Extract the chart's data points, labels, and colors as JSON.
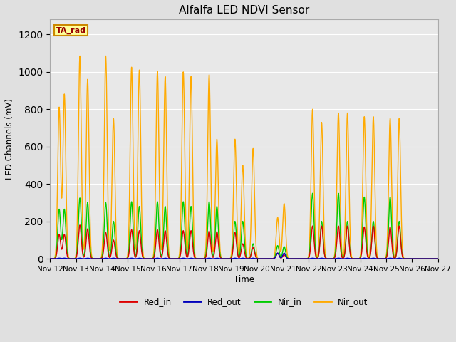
{
  "title": "Alfalfa LED NDVI Sensor",
  "ylabel": "LED Channels (mV)",
  "xlabel": "Time",
  "ylim": [
    0,
    1280
  ],
  "yticks": [
    0,
    200,
    400,
    600,
    800,
    1000,
    1200
  ],
  "xtick_labels": [
    "Nov 12",
    "Nov 13",
    "Nov 14",
    "Nov 15",
    "Nov 16",
    "Nov 17",
    "Nov 18",
    "Nov 19",
    "Nov 20",
    "Nov 21",
    "Nov 22",
    "Nov 23",
    "Nov 24",
    "Nov 25",
    "Nov 26",
    "Nov 27"
  ],
  "fig_bg": "#e0e0e0",
  "plot_bg": "#e8e8e8",
  "annotation_text": "TA_rad",
  "annotation_bg": "#ffff99",
  "annotation_border": "#cc8800",
  "annotation_text_color": "#990000",
  "series": {
    "Red_in": {
      "color": "#dd0000",
      "linewidth": 1.0
    },
    "Red_out": {
      "color": "#0000bb",
      "linewidth": 1.0
    },
    "Nir_in": {
      "color": "#00cc00",
      "linewidth": 1.0
    },
    "Nir_out": {
      "color": "#ffaa00",
      "linewidth": 1.0
    }
  },
  "peaks": [
    {
      "day": 0.35,
      "red_in": 130,
      "red_out": 3,
      "nir_in": 265,
      "nir_out": 810
    },
    {
      "day": 0.55,
      "red_in": 130,
      "red_out": 3,
      "nir_in": 265,
      "nir_out": 880
    },
    {
      "day": 1.15,
      "red_in": 180,
      "red_out": 3,
      "nir_in": 325,
      "nir_out": 1085
    },
    {
      "day": 1.45,
      "red_in": 160,
      "red_out": 3,
      "nir_in": 300,
      "nir_out": 960
    },
    {
      "day": 2.15,
      "red_in": 140,
      "red_out": 3,
      "nir_in": 300,
      "nir_out": 1085
    },
    {
      "day": 2.45,
      "red_in": 100,
      "red_out": 3,
      "nir_in": 200,
      "nir_out": 750
    },
    {
      "day": 3.15,
      "red_in": 155,
      "red_out": 3,
      "nir_in": 305,
      "nir_out": 1025
    },
    {
      "day": 3.45,
      "red_in": 150,
      "red_out": 3,
      "nir_in": 280,
      "nir_out": 1010
    },
    {
      "day": 4.15,
      "red_in": 155,
      "red_out": 3,
      "nir_in": 305,
      "nir_out": 1005
    },
    {
      "day": 4.45,
      "red_in": 150,
      "red_out": 3,
      "nir_in": 280,
      "nir_out": 975
    },
    {
      "day": 5.15,
      "red_in": 150,
      "red_out": 3,
      "nir_in": 305,
      "nir_out": 1000
    },
    {
      "day": 5.45,
      "red_in": 150,
      "red_out": 3,
      "nir_in": 280,
      "nir_out": 975
    },
    {
      "day": 6.15,
      "red_in": 148,
      "red_out": 3,
      "nir_in": 305,
      "nir_out": 985
    },
    {
      "day": 6.45,
      "red_in": 145,
      "red_out": 3,
      "nir_in": 280,
      "nir_out": 640
    },
    {
      "day": 7.15,
      "red_in": 140,
      "red_out": 3,
      "nir_in": 200,
      "nir_out": 640
    },
    {
      "day": 7.45,
      "red_in": 80,
      "red_out": 3,
      "nir_in": 200,
      "nir_out": 500
    },
    {
      "day": 7.85,
      "red_in": 60,
      "red_out": 3,
      "nir_in": 80,
      "nir_out": 590
    },
    {
      "day": 8.8,
      "red_in": 30,
      "red_out": 30,
      "nir_in": 70,
      "nir_out": 220
    },
    {
      "day": 9.05,
      "red_in": 20,
      "red_out": 30,
      "nir_in": 65,
      "nir_out": 295
    },
    {
      "day": 10.15,
      "red_in": 175,
      "red_out": 3,
      "nir_in": 350,
      "nir_out": 800
    },
    {
      "day": 10.5,
      "red_in": 175,
      "red_out": 3,
      "nir_in": 200,
      "nir_out": 730
    },
    {
      "day": 11.15,
      "red_in": 175,
      "red_out": 3,
      "nir_in": 350,
      "nir_out": 780
    },
    {
      "day": 11.5,
      "red_in": 175,
      "red_out": 3,
      "nir_in": 200,
      "nir_out": 780
    },
    {
      "day": 12.15,
      "red_in": 170,
      "red_out": 3,
      "nir_in": 330,
      "nir_out": 760
    },
    {
      "day": 12.5,
      "red_in": 175,
      "red_out": 3,
      "nir_in": 200,
      "nir_out": 760
    },
    {
      "day": 13.15,
      "red_in": 170,
      "red_out": 3,
      "nir_in": 330,
      "nir_out": 750
    },
    {
      "day": 13.5,
      "red_in": 175,
      "red_out": 3,
      "nir_in": 200,
      "nir_out": 750
    }
  ]
}
